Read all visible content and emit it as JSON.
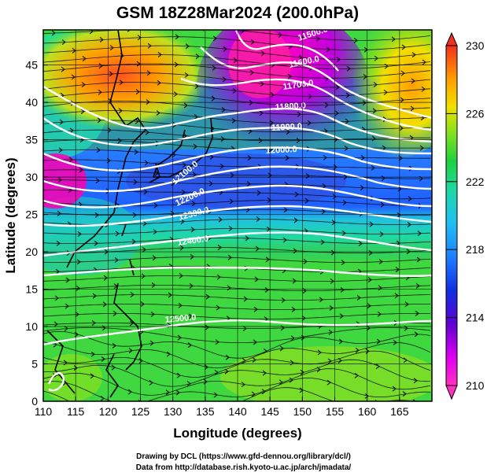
{
  "title": "GSM 18Z28Mar2024 (200.0hPa)",
  "xlabel": "Longitude (degrees)",
  "ylabel": "Latitude  (degrees)",
  "x_ticks": [
    "110",
    "115",
    "120",
    "125",
    "130",
    "135",
    "140",
    "145",
    "150",
    "155",
    "160",
    "165"
  ],
  "y_ticks": [
    "0",
    "5",
    "10",
    "15",
    "20",
    "25",
    "30",
    "35",
    "40",
    "45"
  ],
  "colorbar": {
    "ticks": [
      "210",
      "214",
      "218",
      "222",
      "226",
      "230"
    ],
    "colors": [
      "#ff3fbf",
      "#ff00ff",
      "#b000e0",
      "#2020d0",
      "#2060ff",
      "#20b0ff",
      "#20e0c0",
      "#20d060",
      "#40e020",
      "#a0e020",
      "#f0e000",
      "#ffa000",
      "#ff6020",
      "#f03020"
    ]
  },
  "contours": [
    {
      "label": "11500.0"
    },
    {
      "label": "11600.0"
    },
    {
      "label": "11700.0"
    },
    {
      "label": "11800.0"
    },
    {
      "label": "11900.0"
    },
    {
      "label": "12000.0"
    },
    {
      "label": "12100.0"
    },
    {
      "label": "12200.0"
    },
    {
      "label": "12300.0"
    },
    {
      "label": "12400.0"
    },
    {
      "label": "12500.0"
    }
  ],
  "credits": {
    "line1": "Drawing by DCL (https://www.gfd-dennou.org/library/dcl/)",
    "line2": "Data from http://database.rish.kyoto-u.ac.jp/arch/jmadata/"
  }
}
